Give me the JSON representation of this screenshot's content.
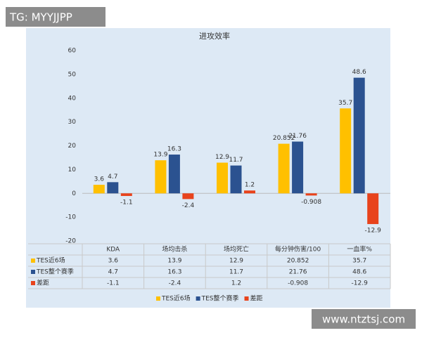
{
  "watermarks": {
    "top": "TG: MYYJJPP",
    "bottom": "www.ntztsj.com"
  },
  "chart_data": {
    "type": "bar",
    "title": "进攻效率",
    "categories": [
      "KDA",
      "场均击杀",
      "场均死亡",
      "每分钟伤害/100",
      "一血率%"
    ],
    "series": [
      {
        "name": "TES近6场",
        "color": "#ffc000",
        "values": [
          3.6,
          13.9,
          12.9,
          20.852,
          35.7
        ]
      },
      {
        "name": "TES整个赛季",
        "color": "#2b5290",
        "values": [
          4.7,
          16.3,
          11.7,
          21.76,
          48.6
        ]
      },
      {
        "name": "差距",
        "color": "#e8431c",
        "values": [
          -1.1,
          -2.4,
          1.2,
          -0.908,
          -12.9
        ]
      }
    ],
    "ylim": [
      -20,
      60
    ],
    "yticks": [
      -20,
      -10,
      0,
      10,
      20,
      30,
      40,
      50,
      60
    ],
    "grid": false,
    "legend": "bottom",
    "data_table": true
  }
}
